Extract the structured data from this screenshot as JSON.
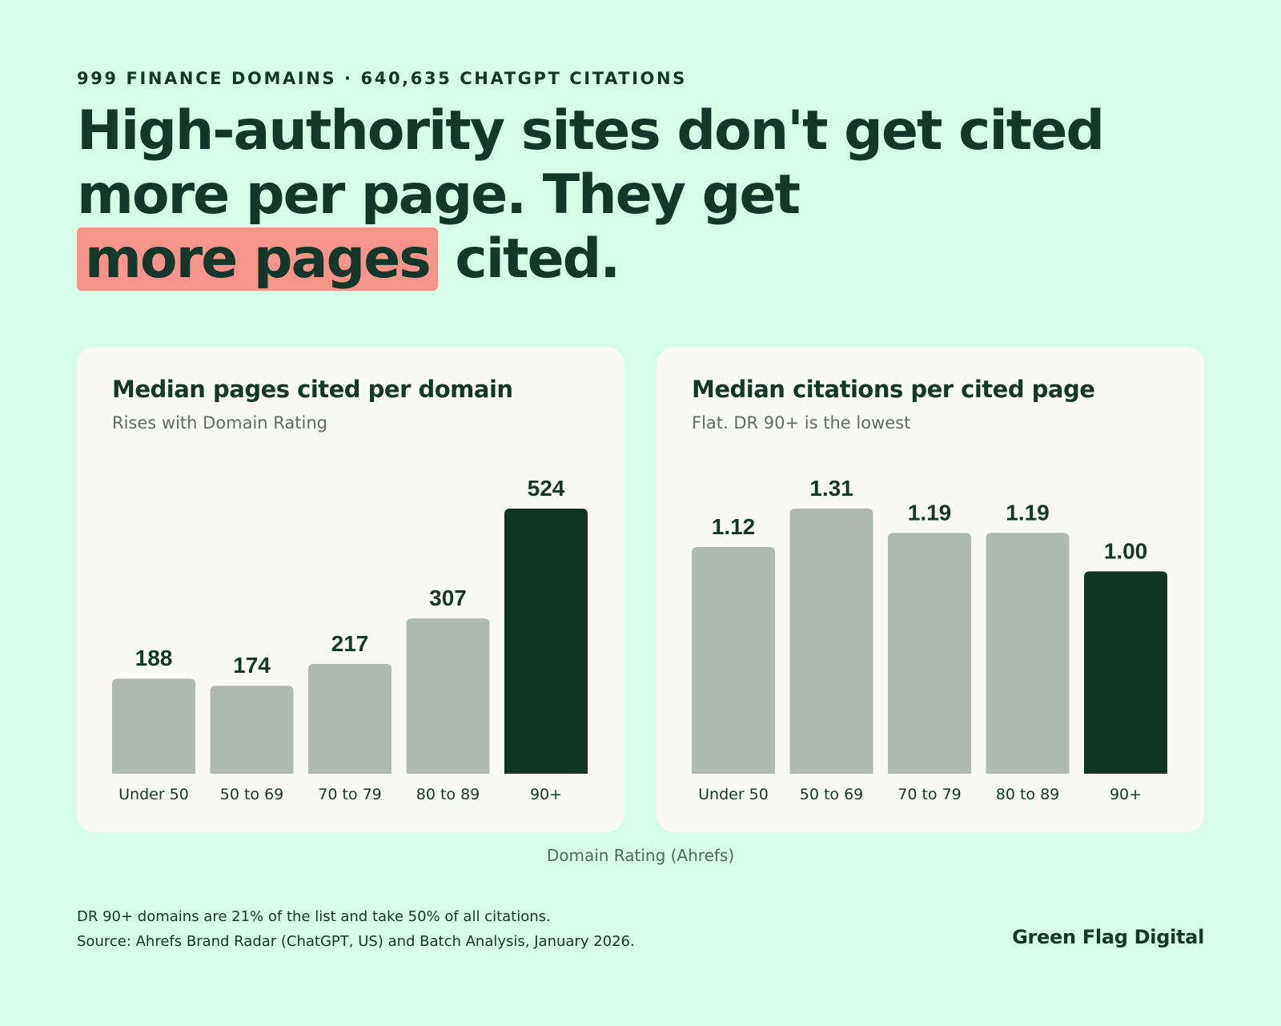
{
  "header": {
    "eyebrow": "999 FINANCE DOMAINS · 640,635 CHATGPT CITATIONS",
    "headline_part1": "High-authority sites don't get cited more per page. They get",
    "headline_highlight": "more pages",
    "headline_part2": "cited."
  },
  "colors": {
    "background": "#d6fbe8",
    "card": "#f9faf5",
    "bar_muted": "#afbab2",
    "bar_highlight": "#123426",
    "highlight": "#f5948a",
    "text": "#13382a"
  },
  "chart_data": [
    {
      "type": "bar",
      "title": "Median pages cited per domain",
      "subtitle": "Rises with Domain Rating",
      "categories": [
        "Under 50",
        "50 to 69",
        "70 to 79",
        "80 to 89",
        "90+"
      ],
      "values": [
        188,
        174,
        217,
        307,
        524
      ],
      "labels": [
        "188",
        "174",
        "217",
        "307",
        "524"
      ],
      "highlight_index": 4,
      "ylim": [
        0,
        524
      ]
    },
    {
      "type": "bar",
      "title": "Median citations per cited page",
      "subtitle": "Flat. DR 90+ is the lowest",
      "categories": [
        "Under 50",
        "50 to 69",
        "70 to 79",
        "80 to 89",
        "90+"
      ],
      "values": [
        1.12,
        1.31,
        1.19,
        1.19,
        1.0
      ],
      "labels": [
        "1.12",
        "1.31",
        "1.19",
        "1.19",
        "1.00"
      ],
      "highlight_index": 4,
      "ylim": [
        0,
        1.31
      ]
    }
  ],
  "xlabel": "Domain Rating (Ahrefs)",
  "footer": {
    "note": "DR 90+ domains are 21% of the list and take 50% of all citations.",
    "source": "Source: Ahrefs Brand Radar (ChatGPT, US) and Batch Analysis, January 2026.",
    "brand": "Green Flag Digital"
  }
}
